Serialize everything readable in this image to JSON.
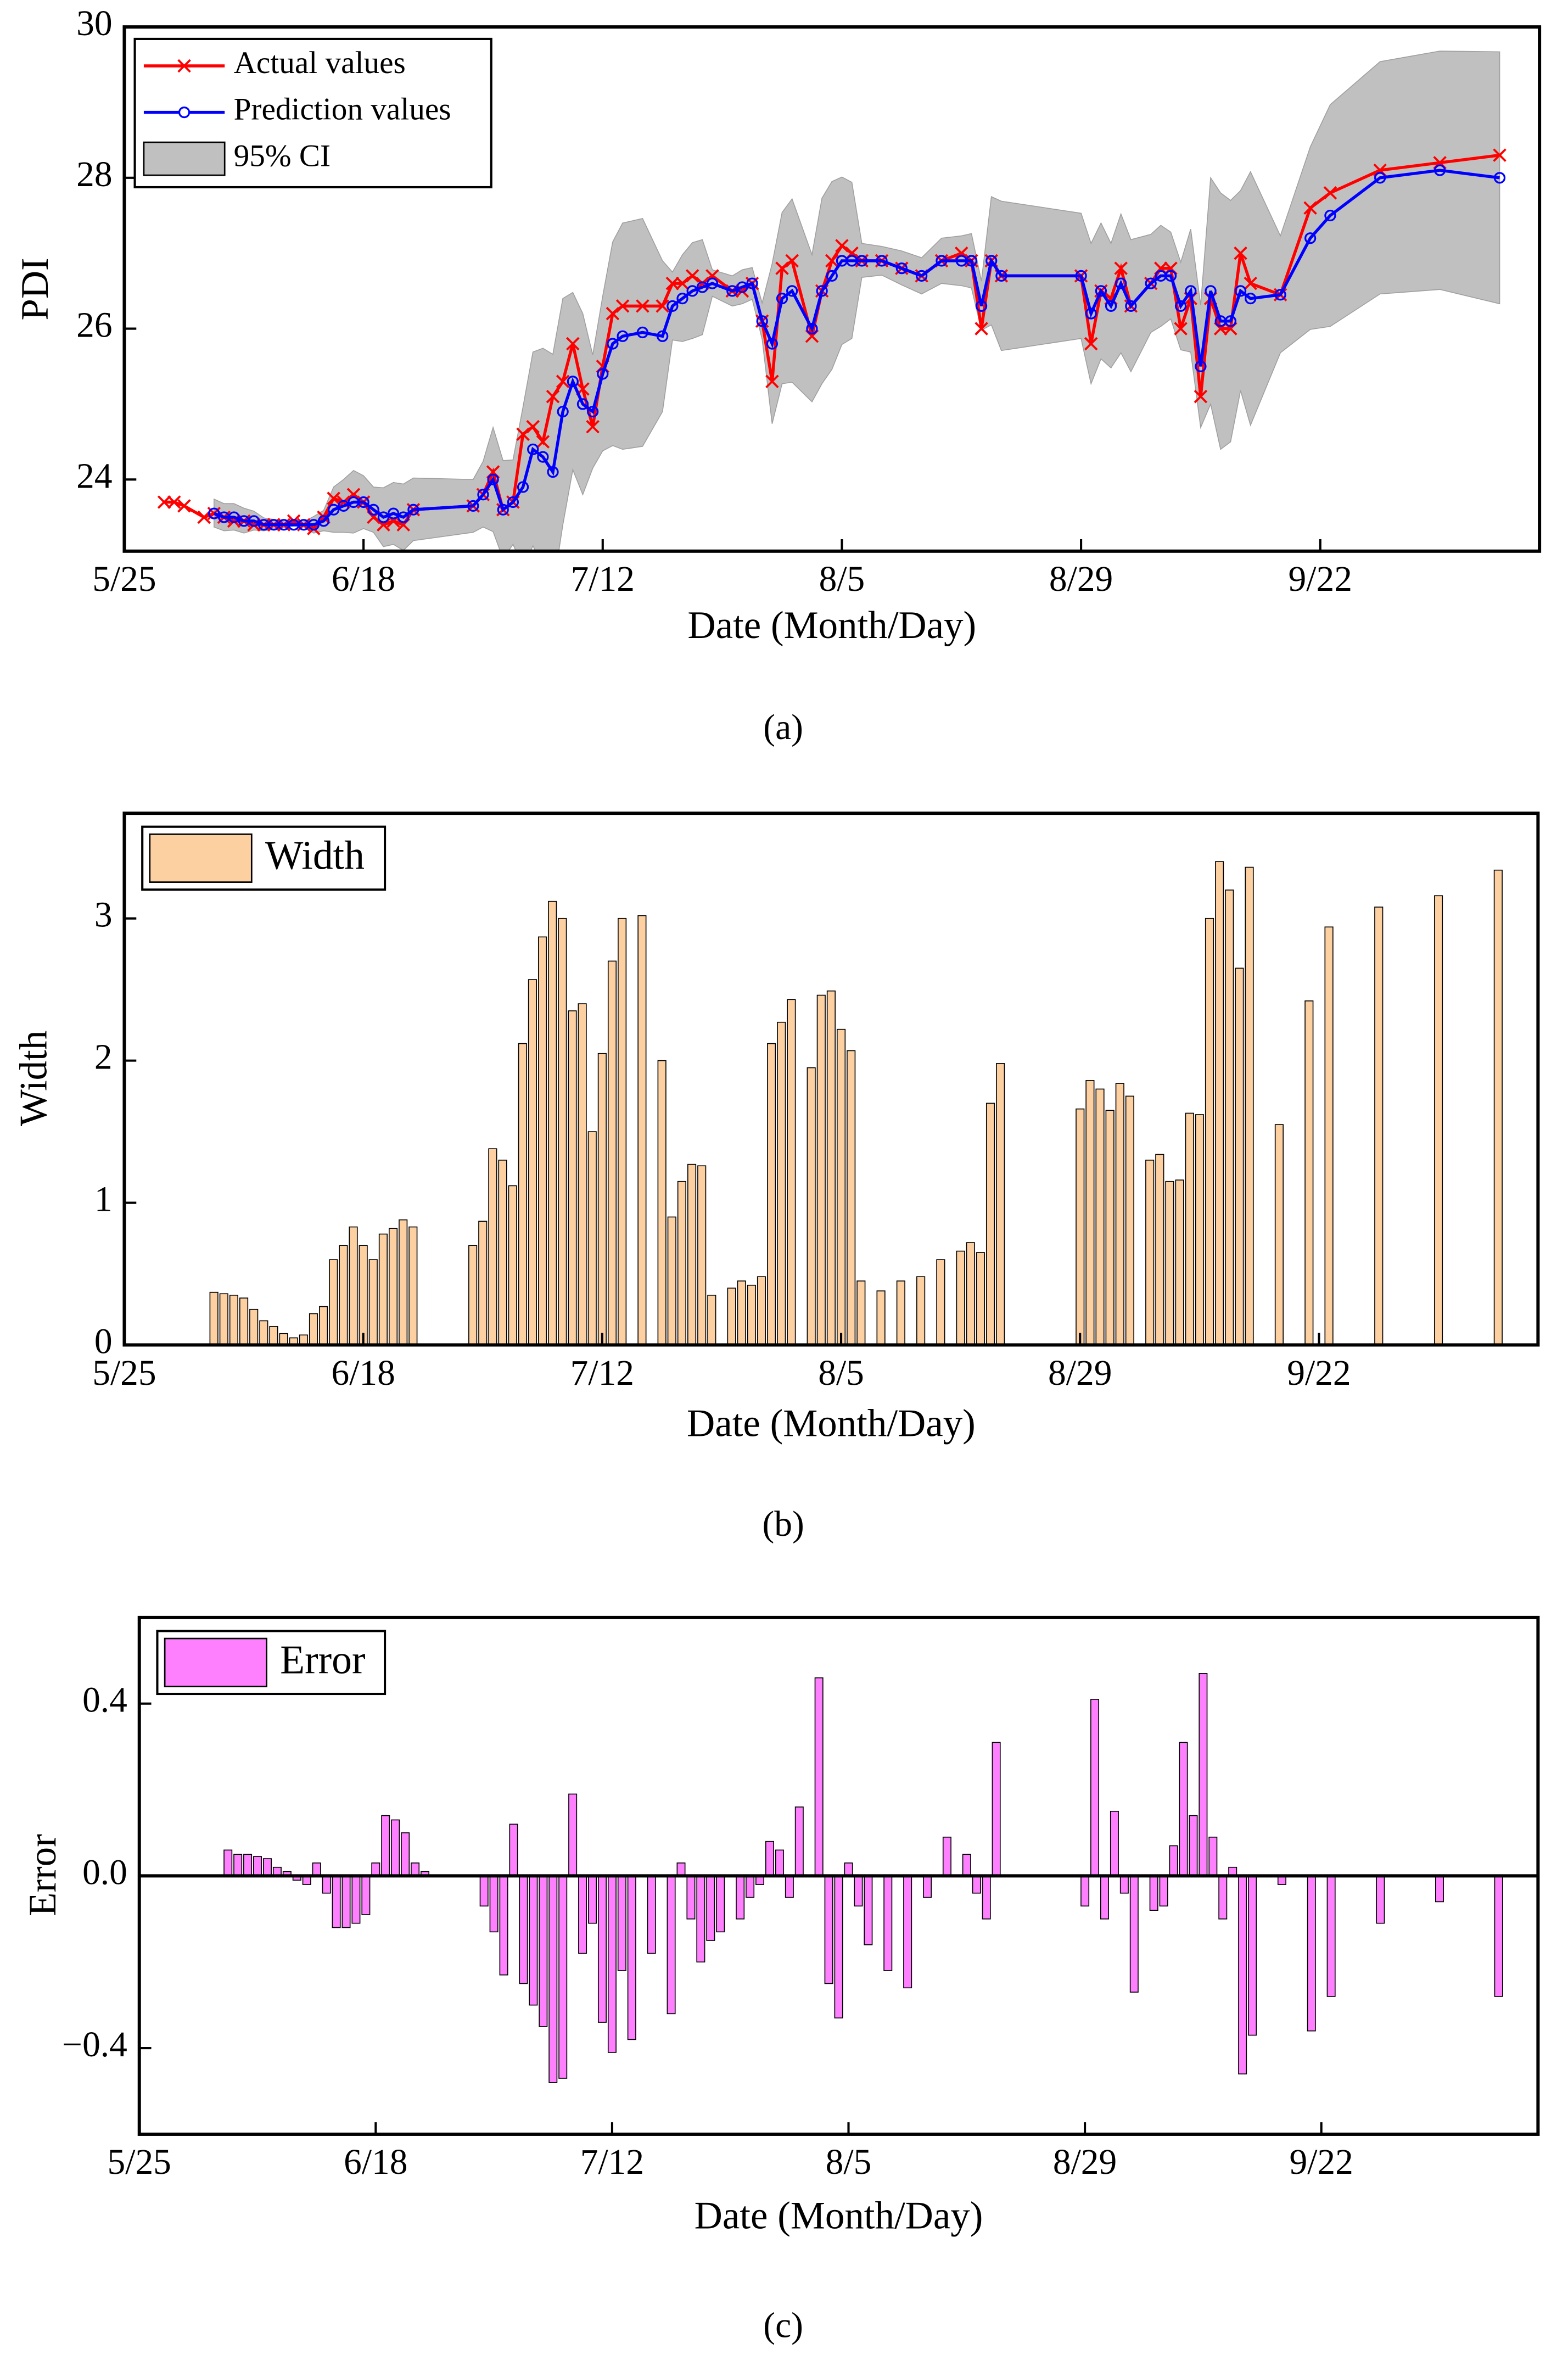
{
  "chart_data": [
    {
      "type": "line",
      "caption": "(a)",
      "x_label": "Date (Month/Day)",
      "y_label": "PDI",
      "x": [
        "5/29",
        "5/30",
        "5/31",
        "6/2",
        "6/3",
        "6/4",
        "6/5",
        "6/6",
        "6/7",
        "6/8",
        "6/9",
        "6/10",
        "6/11",
        "6/12",
        "6/13",
        "6/14",
        "6/15",
        "6/16",
        "6/17",
        "6/18",
        "6/19",
        "6/20",
        "6/21",
        "6/22",
        "6/23",
        "6/29",
        "6/30",
        "7/1",
        "7/2",
        "7/3",
        "7/4",
        "7/5",
        "7/6",
        "7/7",
        "7/8",
        "7/9",
        "7/10",
        "7/11",
        "7/12",
        "7/13",
        "7/14",
        "7/16",
        "7/18",
        "7/19",
        "7/20",
        "7/21",
        "7/22",
        "7/23",
        "7/25",
        "7/26",
        "7/27",
        "7/28",
        "7/29",
        "7/30",
        "7/31",
        "8/2",
        "8/3",
        "8/4",
        "8/5",
        "8/6",
        "8/7",
        "8/9",
        "8/11",
        "8/13",
        "8/15",
        "8/17",
        "8/18",
        "8/19",
        "8/20",
        "8/21",
        "8/29",
        "8/30",
        "8/31",
        "9/1",
        "9/2",
        "9/3",
        "9/5",
        "9/6",
        "9/7",
        "9/8",
        "9/9",
        "9/10",
        "9/11",
        "9/12",
        "9/13",
        "9/14",
        "9/15",
        "9/18",
        "9/21",
        "9/23",
        "9/28",
        "10/4",
        "10/10"
      ],
      "series": [
        {
          "name": "Actual values",
          "color": "#ff0000",
          "marker": "x",
          "values": [
            23.7,
            23.7,
            23.65,
            23.5,
            23.55,
            23.5,
            23.45,
            23.45,
            23.4,
            23.4,
            23.4,
            23.4,
            23.45,
            23.4,
            23.35,
            23.5,
            23.75,
            23.7,
            23.8,
            23.7,
            23.5,
            23.4,
            23.45,
            23.4,
            23.6,
            23.65,
            23.8,
            24.1,
            23.6,
            23.7,
            24.6,
            24.7,
            24.5,
            25.1,
            25.3,
            25.8,
            25.2,
            24.7,
            25.5,
            26.2,
            26.3,
            26.3,
            26.3,
            26.6,
            26.6,
            26.7,
            26.6,
            26.7,
            26.5,
            26.5,
            26.6,
            26.1,
            25.3,
            26.8,
            26.9,
            25.9,
            26.5,
            26.9,
            27.1,
            27.0,
            26.9,
            26.9,
            26.8,
            26.7,
            26.9,
            27.0,
            26.9,
            26.0,
            26.9,
            26.7,
            26.7,
            25.8,
            26.5,
            26.4,
            26.8,
            26.3,
            26.6,
            26.8,
            26.8,
            26.0,
            26.4,
            25.1,
            26.4,
            26.0,
            26.0,
            27.0,
            26.6,
            26.45,
            27.6,
            27.8,
            28.1,
            28.2,
            28.3
          ]
        },
        {
          "name": "Prediction values",
          "color": "#0000ff",
          "marker": "circle",
          "values": [
            null,
            null,
            null,
            null,
            23.55,
            23.5,
            23.5,
            23.45,
            23.45,
            23.4,
            23.4,
            23.4,
            23.4,
            23.4,
            23.4,
            23.45,
            23.6,
            23.65,
            23.7,
            23.7,
            23.6,
            23.5,
            23.55,
            23.5,
            23.6,
            23.65,
            23.8,
            24.0,
            23.6,
            23.7,
            23.9,
            24.4,
            24.3,
            24.1,
            24.9,
            25.3,
            25.0,
            24.9,
            25.4,
            25.8,
            25.9,
            25.95,
            25.9,
            26.3,
            26.4,
            26.5,
            26.55,
            26.6,
            26.5,
            26.55,
            26.6,
            26.1,
            25.8,
            26.4,
            26.5,
            26.0,
            26.5,
            26.7,
            26.9,
            26.9,
            26.9,
            26.9,
            26.8,
            26.7,
            26.9,
            26.9,
            26.9,
            26.3,
            26.9,
            26.7,
            26.7,
            26.2,
            26.5,
            26.3,
            26.6,
            26.3,
            26.6,
            26.7,
            26.7,
            26.3,
            26.5,
            25.5,
            26.5,
            26.1,
            26.1,
            26.5,
            26.4,
            26.45,
            27.2,
            27.5,
            28.0,
            28.1,
            28.0
          ]
        }
      ],
      "band": {
        "name": "95% CI",
        "color": "#c0c0c0",
        "lower": [
          null,
          null,
          null,
          null,
          23.37,
          23.32,
          23.33,
          23.29,
          23.33,
          23.32,
          23.34,
          23.36,
          23.38,
          23.37,
          23.29,
          23.32,
          23.3,
          23.3,
          23.29,
          23.35,
          23.3,
          23.11,
          23.14,
          23.06,
          23.19,
          23.3,
          23.37,
          23.31,
          22.95,
          23.14,
          22.84,
          23.12,
          22.87,
          22.54,
          23.4,
          24.13,
          23.8,
          24.15,
          24.38,
          24.45,
          24.4,
          24.44,
          24.9,
          25.85,
          25.83,
          25.87,
          25.92,
          26.43,
          26.3,
          26.33,
          26.39,
          25.86,
          24.74,
          25.27,
          25.29,
          25.03,
          25.27,
          25.46,
          25.79,
          25.87,
          26.68,
          26.71,
          26.58,
          26.46,
          26.6,
          26.57,
          26.54,
          25.98,
          26.05,
          25.71,
          25.87,
          25.27,
          25.6,
          25.48,
          25.68,
          25.43,
          25.95,
          26.03,
          26.13,
          25.72,
          25.69,
          24.69,
          25.0,
          24.4,
          24.5,
          25.18,
          24.72,
          25.68,
          25.99,
          26.03,
          26.46,
          26.52,
          26.33
        ],
        "upper": [
          null,
          null,
          null,
          null,
          23.74,
          23.68,
          23.68,
          23.62,
          23.58,
          23.49,
          23.47,
          23.44,
          23.43,
          23.44,
          23.51,
          23.59,
          23.9,
          24.0,
          24.12,
          24.05,
          23.9,
          23.89,
          23.96,
          23.94,
          24.02,
          24.0,
          24.24,
          24.69,
          24.25,
          24.26,
          24.96,
          25.69,
          25.74,
          25.66,
          26.4,
          26.48,
          26.2,
          25.65,
          26.43,
          27.15,
          27.4,
          27.46,
          26.9,
          26.75,
          26.98,
          27.14,
          27.18,
          26.78,
          26.7,
          26.78,
          26.81,
          26.34,
          26.86,
          27.54,
          27.72,
          26.98,
          27.73,
          27.95,
          28.01,
          27.94,
          27.13,
          27.09,
          27.03,
          26.94,
          27.2,
          27.23,
          27.26,
          26.63,
          27.75,
          27.69,
          27.53,
          27.13,
          27.4,
          27.13,
          27.52,
          27.18,
          27.25,
          27.37,
          27.28,
          26.88,
          27.32,
          26.31,
          28.0,
          27.8,
          27.7,
          27.83,
          28.08,
          27.23,
          28.41,
          28.97,
          29.54,
          29.68,
          29.67
        ]
      },
      "xlim": [
        "5/25",
        "10/14"
      ],
      "xticks": [
        "5/25",
        "6/18",
        "7/12",
        "8/5",
        "8/29",
        "9/22"
      ],
      "ylim": [
        23.05,
        30
      ],
      "yticks": [
        24,
        26,
        28,
        30
      ],
      "legend": "upper left"
    },
    {
      "type": "bar",
      "caption": "(b)",
      "x_label": "Date (Month/Day)",
      "y_label": "Width",
      "x": [
        "6/3",
        "6/4",
        "6/5",
        "6/6",
        "6/7",
        "6/8",
        "6/9",
        "6/10",
        "6/11",
        "6/12",
        "6/13",
        "6/14",
        "6/15",
        "6/16",
        "6/17",
        "6/18",
        "6/19",
        "6/20",
        "6/21",
        "6/22",
        "6/23",
        "6/29",
        "6/30",
        "7/1",
        "7/2",
        "7/3",
        "7/4",
        "7/5",
        "7/6",
        "7/7",
        "7/8",
        "7/9",
        "7/10",
        "7/11",
        "7/12",
        "7/13",
        "7/14",
        "7/16",
        "7/18",
        "7/19",
        "7/20",
        "7/21",
        "7/22",
        "7/23",
        "7/25",
        "7/26",
        "7/27",
        "7/28",
        "7/29",
        "7/30",
        "7/31",
        "8/2",
        "8/3",
        "8/4",
        "8/5",
        "8/6",
        "8/7",
        "8/9",
        "8/11",
        "8/13",
        "8/15",
        "8/17",
        "8/18",
        "8/19",
        "8/20",
        "8/21",
        "8/29",
        "8/30",
        "8/31",
        "9/1",
        "9/2",
        "9/3",
        "9/5",
        "9/6",
        "9/7",
        "9/8",
        "9/9",
        "9/10",
        "9/11",
        "9/12",
        "9/13",
        "9/14",
        "9/15",
        "9/18",
        "9/21",
        "9/23",
        "9/28",
        "10/4",
        "10/10"
      ],
      "series": [
        {
          "name": "Width",
          "color": "#fdd0a2",
          "values": [
            0.37,
            0.36,
            0.35,
            0.33,
            0.25,
            0.17,
            0.13,
            0.08,
            0.05,
            0.07,
            0.22,
            0.27,
            0.6,
            0.7,
            0.83,
            0.7,
            0.6,
            0.78,
            0.82,
            0.88,
            0.83,
            0.7,
            0.87,
            1.38,
            1.3,
            1.12,
            2.12,
            2.57,
            2.87,
            3.12,
            3.0,
            2.35,
            2.4,
            1.5,
            2.05,
            2.7,
            3.0,
            3.02,
            2.0,
            0.9,
            1.15,
            1.27,
            1.26,
            0.35,
            0.4,
            0.45,
            0.42,
            0.48,
            2.12,
            2.27,
            2.43,
            1.95,
            2.46,
            2.49,
            2.22,
            2.07,
            0.45,
            0.38,
            0.45,
            0.48,
            0.6,
            0.66,
            0.72,
            0.65,
            1.7,
            1.98,
            1.66,
            1.86,
            1.8,
            1.65,
            1.84,
            1.75,
            1.3,
            1.34,
            1.15,
            1.16,
            1.63,
            1.62,
            3.0,
            3.4,
            3.2,
            2.65,
            3.36,
            1.55,
            2.42,
            2.94,
            3.08,
            3.16,
            3.34
          ]
        }
      ],
      "xlim": [
        "5/25",
        "10/14"
      ],
      "xticks": [
        "5/25",
        "6/18",
        "7/12",
        "8/5",
        "8/29",
        "9/22"
      ],
      "ylim": [
        0,
        3.74
      ],
      "yticks": [
        0,
        1,
        2,
        3
      ],
      "legend": "upper left"
    },
    {
      "type": "bar",
      "caption": "(c)",
      "x_label": "Date (Month/Day)",
      "y_label": "Error",
      "x": [
        "6/3",
        "6/4",
        "6/5",
        "6/6",
        "6/7",
        "6/8",
        "6/9",
        "6/10",
        "6/11",
        "6/12",
        "6/13",
        "6/14",
        "6/15",
        "6/16",
        "6/17",
        "6/18",
        "6/19",
        "6/20",
        "6/21",
        "6/22",
        "6/23",
        "6/29",
        "6/30",
        "7/1",
        "7/2",
        "7/3",
        "7/4",
        "7/5",
        "7/6",
        "7/7",
        "7/8",
        "7/9",
        "7/10",
        "7/11",
        "7/12",
        "7/13",
        "7/14",
        "7/16",
        "7/18",
        "7/19",
        "7/20",
        "7/21",
        "7/22",
        "7/23",
        "7/25",
        "7/26",
        "7/27",
        "7/28",
        "7/29",
        "7/30",
        "7/31",
        "8/2",
        "8/3",
        "8/4",
        "8/5",
        "8/6",
        "8/7",
        "8/9",
        "8/11",
        "8/13",
        "8/15",
        "8/17",
        "8/18",
        "8/19",
        "8/20",
        "8/21",
        "8/29",
        "8/30",
        "8/31",
        "9/1",
        "9/2",
        "9/3",
        "9/5",
        "9/6",
        "9/7",
        "9/8",
        "9/9",
        "9/10",
        "9/11",
        "9/12",
        "9/13",
        "9/14",
        "9/15",
        "9/18",
        "9/21",
        "9/23",
        "9/28",
        "10/4",
        "10/10"
      ],
      "series": [
        {
          "name": "Error",
          "color": "#ff80ff",
          "values": [
            0.06,
            0.05,
            0.05,
            0.045,
            0.04,
            0.02,
            0.01,
            -0.01,
            -0.02,
            0.03,
            -0.04,
            -0.12,
            -0.12,
            -0.11,
            -0.09,
            0.03,
            0.14,
            0.13,
            0.1,
            0.03,
            0.01,
            -0.07,
            -0.13,
            -0.23,
            0.12,
            -0.25,
            -0.3,
            -0.35,
            -0.48,
            -0.47,
            0.19,
            -0.18,
            -0.11,
            -0.34,
            -0.41,
            -0.22,
            -0.38,
            -0.18,
            -0.32,
            0.03,
            -0.1,
            -0.2,
            -0.15,
            -0.13,
            -0.1,
            -0.05,
            -0.02,
            0.08,
            0.06,
            -0.05,
            0.16,
            0.46,
            -0.25,
            -0.33,
            0.03,
            -0.07,
            -0.16,
            -0.22,
            -0.26,
            -0.05,
            0.09,
            0.05,
            -0.04,
            -0.1,
            0.31,
            0.0,
            -0.07,
            0.41,
            -0.1,
            0.15,
            -0.04,
            -0.27,
            -0.08,
            -0.07,
            0.07,
            0.31,
            0.14,
            0.47,
            0.09,
            -0.1,
            0.02,
            -0.46,
            -0.37,
            -0.02,
            -0.36,
            -0.28,
            -0.11,
            -0.06,
            -0.28
          ]
        }
      ],
      "xlim": [
        "5/25",
        "10/14"
      ],
      "xticks": [
        "5/25",
        "6/18",
        "7/12",
        "8/5",
        "8/29",
        "9/22"
      ],
      "ylim": [
        -0.6,
        0.6
      ],
      "yticks": [
        {
          "value": -0.4,
          "label": "−0.4"
        },
        {
          "value": 0,
          "label": "0.0"
        },
        0.4
      ],
      "zero_line": true,
      "legend": "upper left"
    }
  ]
}
